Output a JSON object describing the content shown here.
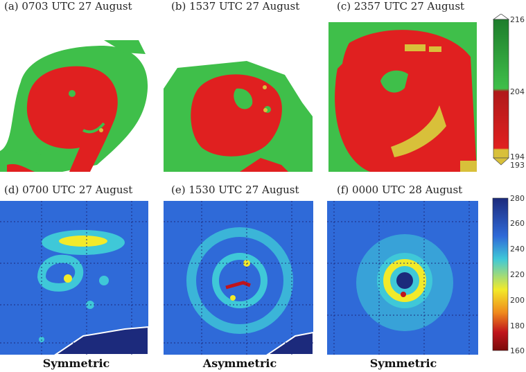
{
  "panels_top": [
    {
      "label": "(a)  0703 UTC 27 August"
    },
    {
      "label": "(b)  1537 UTC 27 August"
    },
    {
      "label": "(c)  2357 UTC 27 August"
    }
  ],
  "panels_bottom": [
    {
      "label": "(d)  0700 UTC 27 August",
      "caption": "Symmetric"
    },
    {
      "label": "(e)  1530 UTC 27 August",
      "caption": "Asymmetric"
    },
    {
      "label": "(f)  0000 UTC 28 August",
      "caption": "Symmetric"
    }
  ],
  "colorbar_top": {
    "ticks": [
      "216",
      "204",
      "194",
      "193"
    ],
    "colors": {
      "green_dark": "#1e7d2c",
      "green_light": "#3fbf4a",
      "red_dark": "#b01a1a",
      "red": "#e02020",
      "yellow": "#d8c03a"
    }
  },
  "colorbar_bottom": {
    "ticks": [
      "280",
      "260",
      "240",
      "220",
      "200",
      "180",
      "160"
    ],
    "colors": {
      "top": "#1c2a7c",
      "blue": "#2f6ad8",
      "cyan": "#3fc8d8",
      "yellow": "#f2ea2a",
      "orange": "#f08a1c",
      "red": "#c0141c",
      "bottom": "#7a0a0a"
    }
  }
}
